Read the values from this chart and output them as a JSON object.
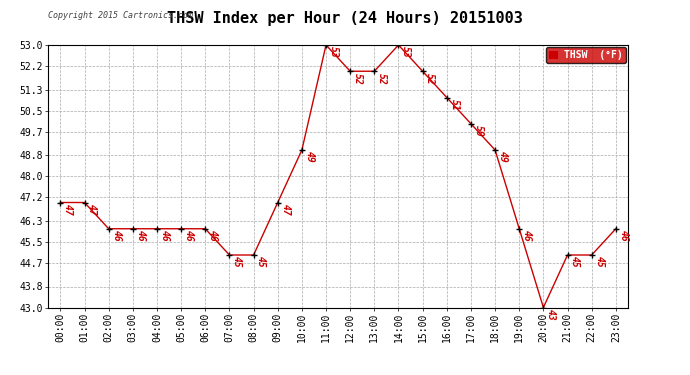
{
  "title": "THSW Index per Hour (24 Hours) 20151003",
  "copyright": "Copyright 2015 Cartronics.com",
  "legend_label": "THSW  (°F)",
  "hours": [
    0,
    1,
    2,
    3,
    4,
    5,
    6,
    7,
    8,
    9,
    10,
    11,
    12,
    13,
    14,
    15,
    16,
    17,
    18,
    19,
    20,
    21,
    22,
    23
  ],
  "x_labels": [
    "00:00",
    "01:00",
    "02:00",
    "03:00",
    "04:00",
    "05:00",
    "06:00",
    "07:00",
    "08:00",
    "09:00",
    "10:00",
    "11:00",
    "12:00",
    "13:00",
    "14:00",
    "15:00",
    "16:00",
    "17:00",
    "18:00",
    "19:00",
    "20:00",
    "21:00",
    "22:00",
    "23:00"
  ],
  "values": [
    47,
    47,
    46,
    46,
    46,
    46,
    46,
    45,
    45,
    47,
    49,
    53,
    52,
    52,
    53,
    52,
    51,
    50,
    49,
    46,
    43,
    45,
    45,
    46
  ],
  "line_color": "#cc0000",
  "marker_color": "#000000",
  "bg_color": "#ffffff",
  "grid_color": "#aaaaaa",
  "title_color": "#000000",
  "copyright_color": "#444444",
  "legend_bg": "#cc0000",
  "legend_text_color": "#ffffff",
  "ylim": [
    43.0,
    53.0
  ],
  "yticks": [
    43.0,
    43.8,
    44.7,
    45.5,
    46.3,
    47.2,
    48.0,
    48.8,
    49.7,
    50.5,
    51.3,
    52.2,
    53.0
  ],
  "title_fontsize": 11,
  "label_fontsize": 7,
  "annot_fontsize": 7,
  "copyright_fontsize": 6,
  "axis_label_color": "#000000"
}
